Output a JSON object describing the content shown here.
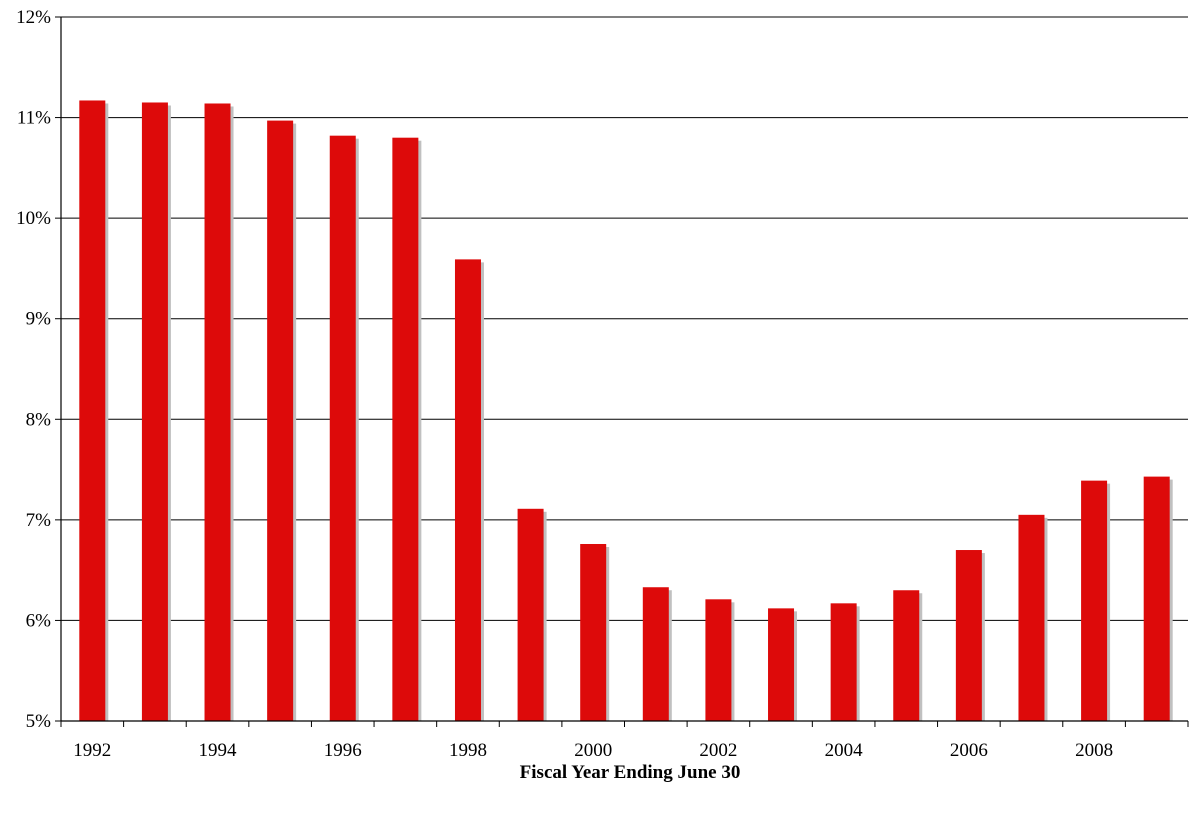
{
  "chart_data": {
    "type": "bar",
    "title": "",
    "xlabel": "Fiscal Year Ending June 30",
    "ylabel": "",
    "categories": [
      "1992",
      "1993",
      "1994",
      "1995",
      "1996",
      "1997",
      "1998",
      "1999",
      "2000",
      "2001",
      "2002",
      "2003",
      "2004",
      "2005",
      "2006",
      "2007",
      "2008",
      "2009"
    ],
    "x_tick_labels": [
      "1992",
      "",
      "1994",
      "",
      "1996",
      "",
      "1998",
      "",
      "2000",
      "",
      "2002",
      "",
      "2004",
      "",
      "2006",
      "",
      "2008",
      ""
    ],
    "series": [
      {
        "values": [
          11.17,
          11.15,
          11.14,
          10.97,
          10.82,
          10.8,
          9.59,
          7.11,
          6.76,
          6.33,
          6.21,
          6.12,
          6.17,
          6.3,
          6.7,
          7.05,
          7.39,
          7.43
        ]
      }
    ],
    "ylim": [
      5,
      12
    ],
    "y_ticks": [
      5,
      6,
      7,
      8,
      9,
      10,
      11,
      12
    ],
    "y_tick_labels": [
      "5%",
      "6%",
      "7%",
      "8%",
      "9%",
      "10%",
      "11%",
      "12%"
    ],
    "grid": true,
    "legend": "none",
    "bar_color": "#dd0a0a",
    "shadow_color": "#c0c0c0"
  }
}
